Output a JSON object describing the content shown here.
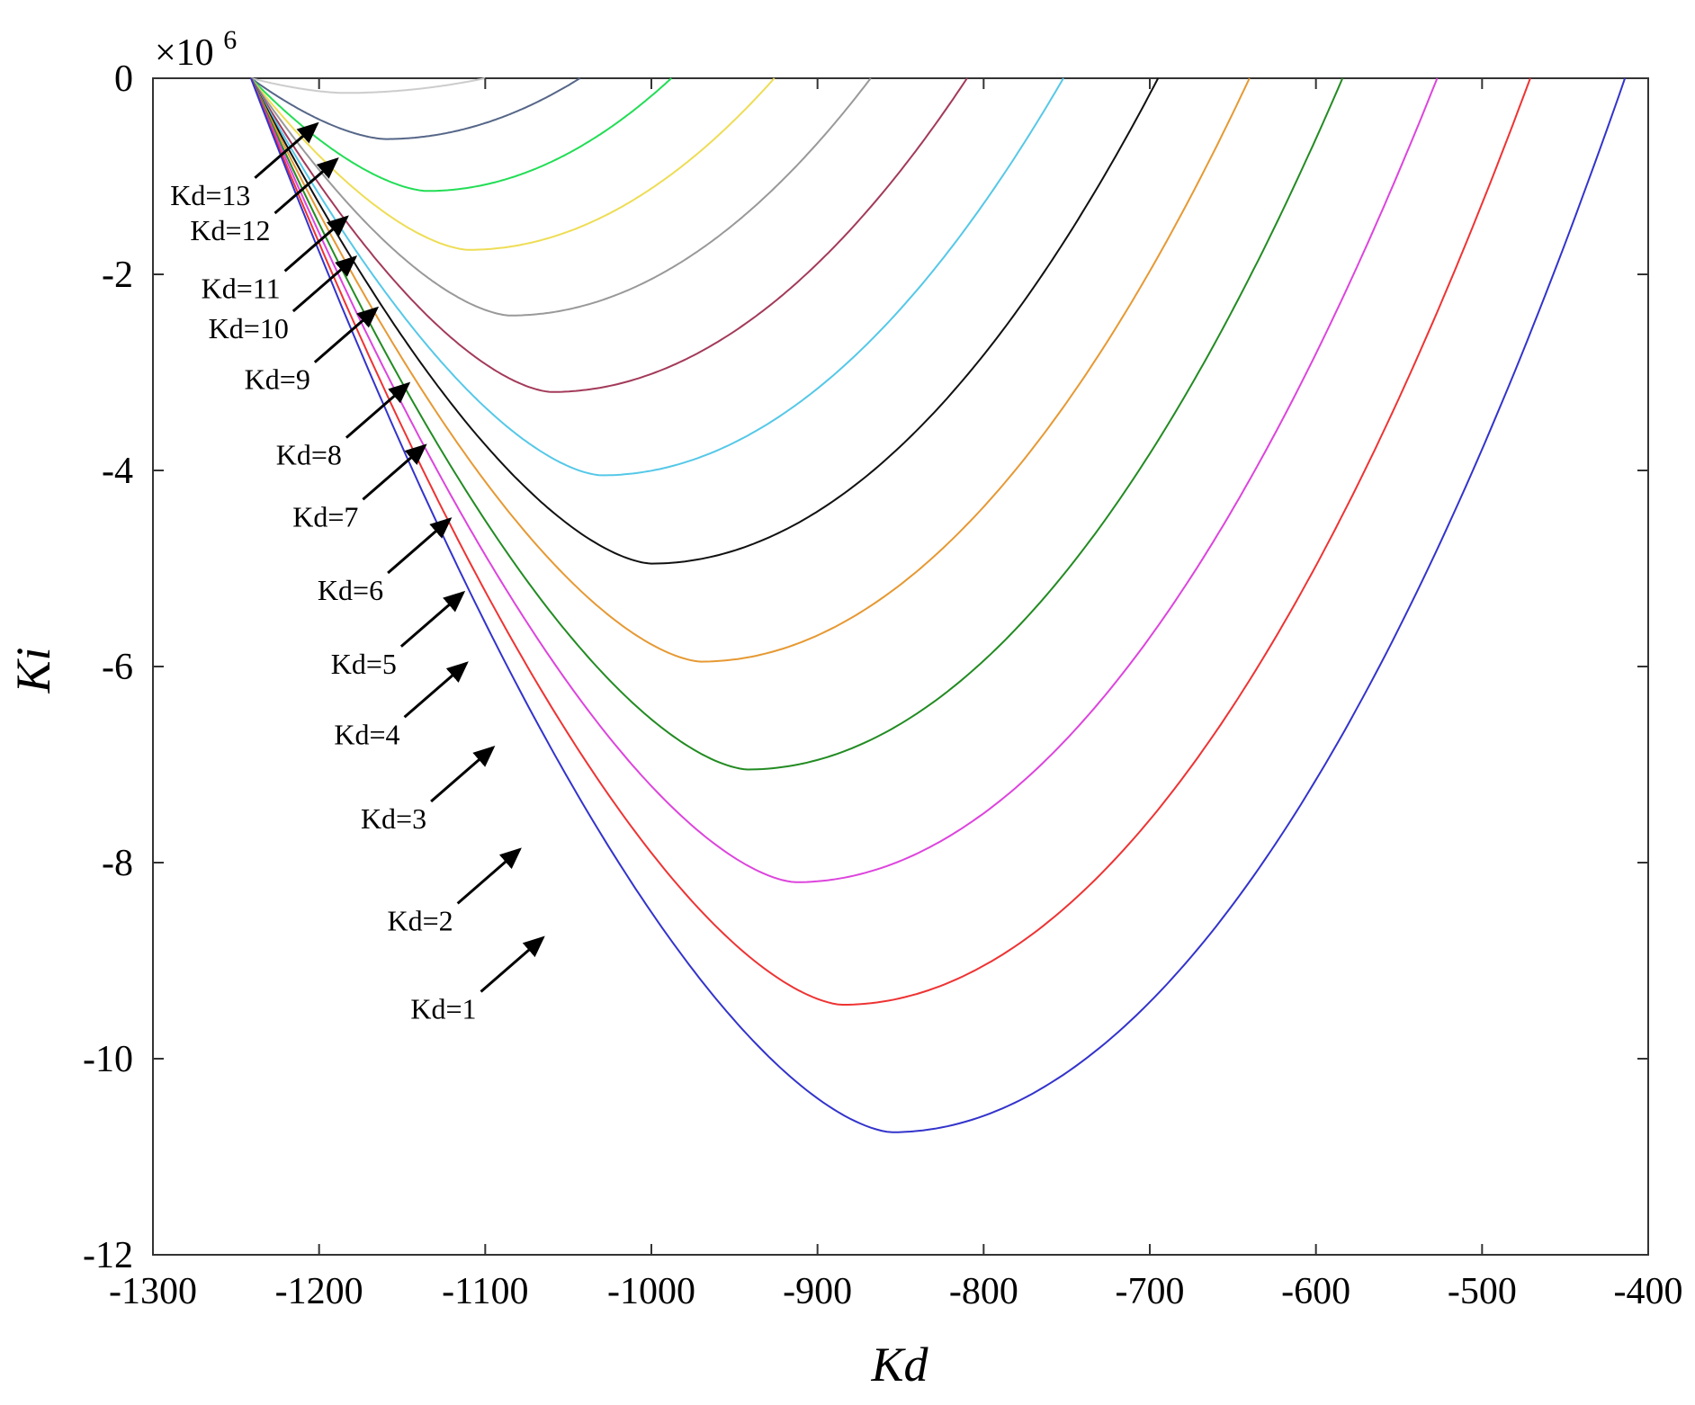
{
  "chart_data": {
    "type": "line",
    "title": "",
    "xlabel": "Kd",
    "ylabel": "Ki",
    "y_multiplier": "×10",
    "y_multiplier_exponent": "6",
    "xlim": [
      -1300,
      -400
    ],
    "ylim": [
      -12,
      0
    ],
    "x_ticks": [
      -1300,
      -1200,
      -1100,
      -1000,
      -900,
      -800,
      -700,
      -600,
      -500,
      -400
    ],
    "x_tick_labels": [
      "-1300",
      "-1200",
      "-1100",
      "-1000",
      "-900",
      "-800",
      "-700",
      "-600",
      "-500",
      "-400"
    ],
    "y_ticks": [
      0,
      -2,
      -4,
      -6,
      -8,
      -10,
      -12
    ],
    "y_tick_labels": [
      "0",
      "-2",
      "-4",
      "-6",
      "-8",
      "-10",
      "-12"
    ],
    "grid": false,
    "series": [
      {
        "name": "Kd=1",
        "color": "#3333cc",
        "x_start": -1241,
        "x_end": -414,
        "x_min": -855,
        "y_min": -10.75
      },
      {
        "name": "Kd=2",
        "color": "#ee3333",
        "x_start": -1241,
        "x_end": -471,
        "x_min": -885,
        "y_min": -9.45
      },
      {
        "name": "Kd=3",
        "color": "#dd44dd",
        "x_start": -1241,
        "x_end": -527,
        "x_min": -913,
        "y_min": -8.2
      },
      {
        "name": "Kd=4",
        "color": "#228b22",
        "x_start": -1241,
        "x_end": -584,
        "x_min": -942,
        "y_min": -7.05
      },
      {
        "name": "Kd=5",
        "color": "#e69933",
        "x_start": -1241,
        "x_end": -640,
        "x_min": -970,
        "y_min": -5.95
      },
      {
        "name": "Kd=6",
        "color": "#111111",
        "x_start": -1241,
        "x_end": -695,
        "x_min": -1000,
        "y_min": -4.95
      },
      {
        "name": "Kd=7",
        "color": "#55c8e8",
        "x_start": -1241,
        "x_end": -752,
        "x_min": -1030,
        "y_min": -4.05
      },
      {
        "name": "Kd=8",
        "color": "#a33a5a",
        "x_start": -1241,
        "x_end": -810,
        "x_min": -1060,
        "y_min": -3.2
      },
      {
        "name": "Kd=9",
        "color": "#999999",
        "x_start": -1241,
        "x_end": -868,
        "x_min": -1085,
        "y_min": -2.42
      },
      {
        "name": "Kd=10",
        "color": "#eedd55",
        "x_start": -1241,
        "x_end": -926,
        "x_min": -1110,
        "y_min": -1.75
      },
      {
        "name": "Kd=11",
        "color": "#22dd55",
        "x_start": -1241,
        "x_end": -988,
        "x_min": -1135,
        "y_min": -1.15
      },
      {
        "name": "Kd=12",
        "color": "#556688",
        "x_start": -1241,
        "x_end": -1043,
        "x_min": -1160,
        "y_min": -0.62
      },
      {
        "name": "Kd=13",
        "color": "#cccccc",
        "x_start": -1241,
        "x_end": -1100,
        "x_min": -1185,
        "y_min": -0.15
      }
    ],
    "annotations": [
      {
        "text": "Kd=1",
        "target_x": -1062,
        "target_y": -8.72
      },
      {
        "text": "Kd=2",
        "target_x": -1076,
        "target_y": -7.82
      },
      {
        "text": "Kd=3",
        "target_x": -1092,
        "target_y": -6.78
      },
      {
        "text": "Kd=4",
        "target_x": -1108,
        "target_y": -5.92
      },
      {
        "text": "Kd=5",
        "target_x": -1110,
        "target_y": -5.2
      },
      {
        "text": "Kd=6",
        "target_x": -1118,
        "target_y": -4.45
      },
      {
        "text": "Kd=7",
        "target_x": -1133,
        "target_y": -3.7
      },
      {
        "text": "Kd=8",
        "target_x": -1143,
        "target_y": -3.07
      },
      {
        "text": "Kd=9",
        "target_x": -1162,
        "target_y": -2.3
      },
      {
        "text": "Kd=10",
        "target_x": -1175,
        "target_y": -1.78
      },
      {
        "text": "Kd=11",
        "target_x": -1180,
        "target_y": -1.37
      },
      {
        "text": "Kd=12",
        "target_x": -1186,
        "target_y": -0.78
      },
      {
        "text": "Kd=13",
        "target_x": -1198,
        "target_y": -0.42
      }
    ]
  }
}
